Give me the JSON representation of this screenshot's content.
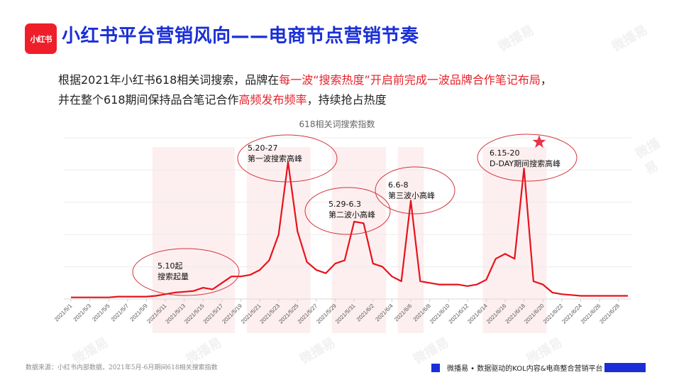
{
  "header": {
    "logo_text": "小红书",
    "title": "小红书平台营销风向——电商节点营销节奏"
  },
  "description": {
    "line1_a": "根据2021年小红书618相关词搜索，品牌在",
    "line1_hl": "每一波“搜索热度”开启前完成一波品牌合作笔记布局",
    "line1_b": "，",
    "line2_a": "并在整个618期间保持品合笔记合作",
    "line2_hl": "高频发布频率",
    "line2_b": "，持续抢占热度"
  },
  "watermark_text": "微播易",
  "chart_data": {
    "type": "line",
    "title": "618相关词搜索指数",
    "xlabel": "",
    "ylabel": "",
    "ylim": [
      0,
      100
    ],
    "grid": true,
    "legend": "none",
    "y_axis_labels_visible": false,
    "line_color": "#e8121c",
    "x": [
      "2021/5/1",
      "2021/5/2",
      "2021/5/3",
      "2021/5/4",
      "2021/5/5",
      "2021/5/6",
      "2021/5/7",
      "2021/5/8",
      "2021/5/9",
      "2021/5/10",
      "2021/5/11",
      "2021/5/12",
      "2021/5/13",
      "2021/5/14",
      "2021/5/15",
      "2021/5/16",
      "2021/5/17",
      "2021/5/18",
      "2021/5/19",
      "2021/5/20",
      "2021/5/21",
      "2021/5/22",
      "2021/5/23",
      "2021/5/24",
      "2021/5/25",
      "2021/5/26",
      "2021/5/27",
      "2021/5/28",
      "2021/5/29",
      "2021/5/30",
      "2021/5/31",
      "2021/6/1",
      "2021/6/2",
      "2021/6/3",
      "2021/6/4",
      "2021/6/5",
      "2021/6/6",
      "2021/6/7",
      "2021/6/8",
      "2021/6/9",
      "2021/6/10",
      "2021/6/11",
      "2021/6/12",
      "2021/6/13",
      "2021/6/14",
      "2021/6/15",
      "2021/6/16",
      "2021/6/17",
      "2021/6/18",
      "2021/6/19",
      "2021/6/20",
      "2021/6/21",
      "2021/6/22",
      "2021/6/23",
      "2021/6/24",
      "2021/6/25",
      "2021/6/26",
      "2021/6/27",
      "2021/6/28",
      "2021/6/29"
    ],
    "tick_labels": [
      "2021/5/1",
      "2021/5/3",
      "2021/5/5",
      "2021/5/7",
      "2021/5/9",
      "2021/5/11",
      "2021/5/13",
      "2021/5/15",
      "2021/5/17",
      "2021/5/19",
      "2021/5/21",
      "2021/5/23",
      "2021/5/25",
      "2021/5/27",
      "2021/5/29",
      "2021/5/31",
      "2021/6/2",
      "2021/6/4",
      "2021/6/6",
      "2021/6/8",
      "2021/6/10",
      "2021/6/12",
      "2021/6/14",
      "2021/6/16",
      "2021/6/18",
      "2021/6/20",
      "2021/6/22",
      "2021/6/24",
      "2021/6/26",
      "2021/6/28"
    ],
    "series": [
      {
        "name": "618相关词搜索指数",
        "values": [
          1,
          1,
          1,
          1,
          1,
          1.5,
          1.5,
          1.5,
          1.5,
          2,
          3,
          4,
          4.5,
          5,
          7,
          6,
          10,
          14,
          14,
          15,
          18,
          24,
          40,
          85,
          42,
          23,
          18,
          16,
          22,
          24,
          48,
          47,
          22,
          20,
          14,
          11,
          61,
          11,
          10,
          9,
          9,
          9,
          8,
          9,
          12,
          25,
          28,
          25,
          81,
          11,
          9,
          4,
          3,
          2.5,
          2,
          2,
          2,
          2,
          2,
          2
        ]
      }
    ],
    "highlight_bands": [
      {
        "from": "2021/5/10",
        "to": "2021/5/18"
      },
      {
        "from": "2021/5/20",
        "to": "2021/5/26"
      },
      {
        "from": "2021/5/29",
        "to": "2021/6/3"
      },
      {
        "from": "2021/6/5",
        "to": "2021/6/7"
      },
      {
        "from": "2021/6/14",
        "to": "2021/6/20"
      }
    ],
    "annotations": [
      {
        "label": "5.10起",
        "sub": "搜索起量"
      },
      {
        "label": "5.20-27",
        "sub": "第一波搜索高峰"
      },
      {
        "label": "5.29-6.3",
        "sub": "第二波小高峰"
      },
      {
        "label": "6.6-8",
        "sub": "第三波小高峰"
      },
      {
        "label": "6.15-20",
        "sub": "D-DAY期间搜索高峰",
        "marker": "star"
      }
    ]
  },
  "footer": {
    "source": "数据来源：小红书内部数据，2021年5月-6月期间618相关搜索指数",
    "brand": "微播易 • 数据驱动的KOL内容&电商整合营销平台"
  },
  "colors": {
    "brand_blue": "#1a2fd6",
    "accent_red": "#e8222b",
    "band_fill": "#fdecec"
  }
}
